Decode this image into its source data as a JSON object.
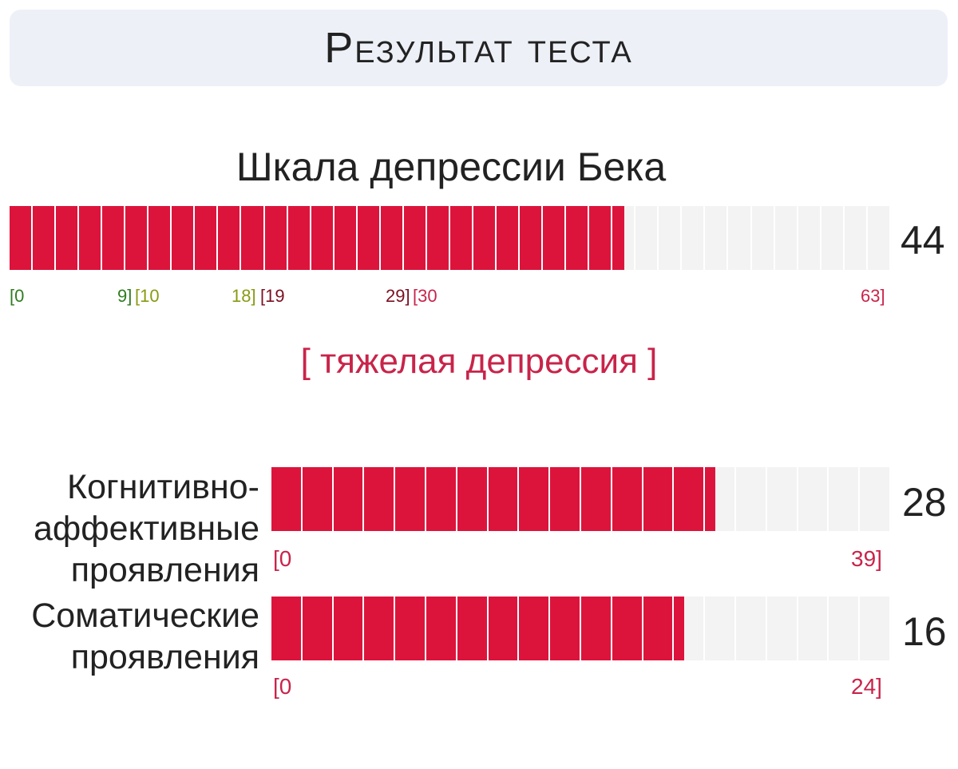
{
  "header": {
    "title": "Результат теста"
  },
  "main_scale": {
    "title": "Шкала депрессии Бека",
    "score": "44",
    "value": 44,
    "max": 63,
    "segments": 38,
    "fill_color": "#dc143c",
    "ticks": [
      {
        "text": "[0",
        "color": "#2e7d1e"
      },
      {
        "text": "9]",
        "color": "#2e7d1e"
      },
      {
        "text": "[10",
        "color": "#8a9a12"
      },
      {
        "text": "18]",
        "color": "#8a9a12"
      },
      {
        "text": "[19",
        "color": "#7a1020"
      },
      {
        "text": "29]",
        "color": "#7a1020"
      },
      {
        "text": "[30",
        "color": "#c8244a"
      },
      {
        "text": "63]",
        "color": "#c8244a"
      }
    ],
    "severity": "[ тяжелая депрессия ]",
    "severity_color": "#c8244a"
  },
  "subscales": [
    {
      "label_lines": [
        "Когнитивно-",
        "аффективные",
        "проявления"
      ],
      "score": "28",
      "value": 28,
      "max": 39,
      "segments": 20,
      "min_label": "[0",
      "max_label": "39]",
      "tick_color": "#c8244a",
      "fill_color": "#dc143c"
    },
    {
      "label_lines": [
        "Соматические",
        "проявления"
      ],
      "score": "16",
      "value": 16,
      "max": 24,
      "segments": 20,
      "min_label": "[0",
      "max_label": "24]",
      "tick_color": "#c8244a",
      "fill_color": "#dc143c"
    }
  ]
}
